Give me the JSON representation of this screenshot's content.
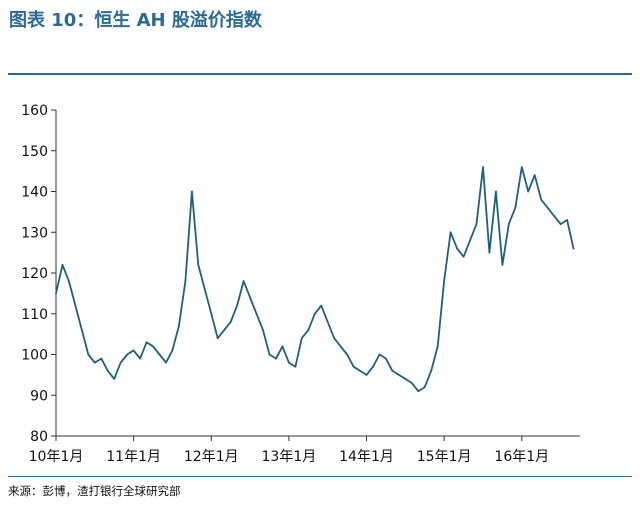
{
  "figure": {
    "title": "图表 10：恒生 AH 股溢价指数",
    "source": "来源：彭博，渣打银行全球研究部"
  },
  "colors": {
    "title": "#2b6a96",
    "line": "#1f5f82",
    "axis": "#333333",
    "rule": "#2b6a96"
  },
  "chart_data": {
    "type": "line",
    "title": "恒生 AH 股溢价指数",
    "xlabel": "",
    "ylabel": "",
    "ylim": [
      80,
      160
    ],
    "yticks": [
      80,
      90,
      100,
      110,
      120,
      130,
      140,
      150,
      160
    ],
    "xlim": [
      "2010-01",
      "2016-10"
    ],
    "xticks": [
      {
        "value": "2010-01",
        "label": "10年1月"
      },
      {
        "value": "2011-01",
        "label": "11年1月"
      },
      {
        "value": "2012-01",
        "label": "12年1月"
      },
      {
        "value": "2013-01",
        "label": "13年1月"
      },
      {
        "value": "2014-01",
        "label": "14年1月"
      },
      {
        "value": "2015-01",
        "label": "15年1月"
      },
      {
        "value": "2016-01",
        "label": "16年1月"
      }
    ],
    "grid": false,
    "legend": "none",
    "series": [
      {
        "x": [
          "2010-01",
          "2010-02",
          "2010-03",
          "2010-04",
          "2010-05",
          "2010-06",
          "2010-07",
          "2010-08",
          "2010-09",
          "2010-10",
          "2010-11",
          "2010-12",
          "2011-01",
          "2011-02",
          "2011-03",
          "2011-04",
          "2011-05",
          "2011-06",
          "2011-07",
          "2011-08",
          "2011-09",
          "2011-10",
          "2011-11",
          "2011-12",
          "2012-01",
          "2012-02",
          "2012-03",
          "2012-04",
          "2012-05",
          "2012-06",
          "2012-07",
          "2012-08",
          "2012-09",
          "2012-10",
          "2012-11",
          "2012-12",
          "2013-01",
          "2013-02",
          "2013-03",
          "2013-04",
          "2013-05",
          "2013-06",
          "2013-07",
          "2013-08",
          "2013-09",
          "2013-10",
          "2013-11",
          "2013-12",
          "2014-01",
          "2014-02",
          "2014-03",
          "2014-04",
          "2014-05",
          "2014-06",
          "2014-07",
          "2014-08",
          "2014-09",
          "2014-10",
          "2014-11",
          "2014-12",
          "2015-01",
          "2015-02",
          "2015-03",
          "2015-04",
          "2015-05",
          "2015-06",
          "2015-07",
          "2015-08",
          "2015-09",
          "2015-10",
          "2015-11",
          "2015-12",
          "2016-01",
          "2016-02",
          "2016-03",
          "2016-04",
          "2016-05",
          "2016-06",
          "2016-07",
          "2016-08",
          "2016-09"
        ],
        "values": [
          115,
          122,
          118,
          112,
          106,
          100,
          98,
          99,
          96,
          94,
          98,
          100,
          101,
          99,
          103,
          102,
          100,
          98,
          101,
          107,
          118,
          140,
          122,
          116,
          110,
          104,
          106,
          108,
          112,
          118,
          114,
          110,
          106,
          100,
          99,
          102,
          98,
          97,
          104,
          106,
          110,
          112,
          108,
          104,
          102,
          100,
          97,
          96,
          95,
          97,
          100,
          99,
          96,
          95,
          94,
          93,
          91,
          92,
          96,
          102,
          118,
          130,
          126,
          124,
          128,
          132,
          146,
          125,
          140,
          122,
          132,
          136,
          146,
          140,
          144,
          138,
          136,
          134,
          132,
          133,
          126
        ]
      }
    ]
  }
}
